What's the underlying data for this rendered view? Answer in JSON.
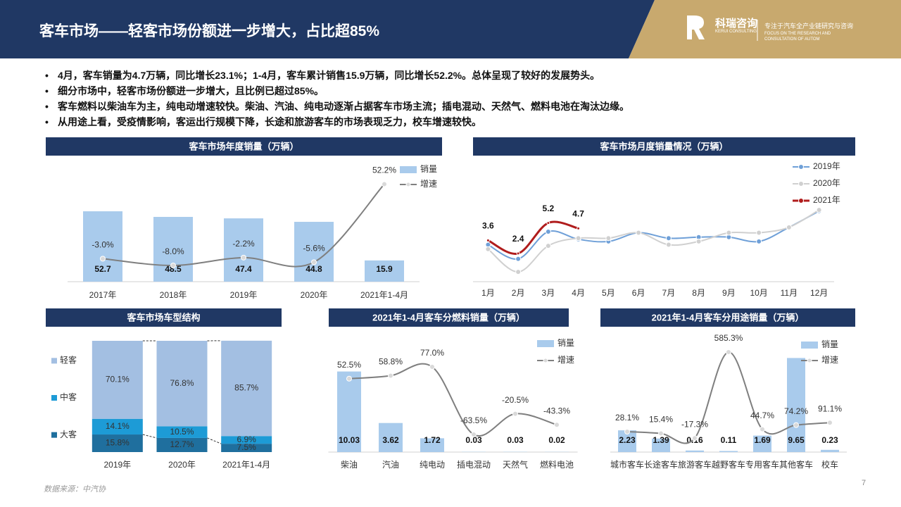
{
  "header": {
    "title": "客车市场——轻客市场份额进一步增大，占比超85%",
    "logo": "科瑞咨询",
    "logo_en": "KERUI CONSULTING",
    "tagline": "专注于汽车全产业链研究与咨询",
    "tagline_en_1": "FOCUS ON THE RESEARCH AND",
    "tagline_en_2": "CONSULTATION OF AUTOM"
  },
  "bullets": [
    "4月，客车销量为4.7万辆，同比增长23.1%；1-4月，客车累计销售15.9万辆，同比增长52.2%。总体呈现了较好的发展势头。",
    "细分市场中，轻客市场份额进一步增大，且比例已超过85%。",
    "客车燃料以柴油车为主，纯电动增速较快。柴油、汽油、纯电动逐渐占据客车市场主流；插电混动、天然气、燃料电池在淘汰边缘。",
    "从用途上看，受疫情影响，客运出行规模下降，长途和旅游客车的市场表现乏力，校车增速较快。"
  ],
  "chart_data": [
    {
      "type": "combo",
      "title": "客车市场年度销量（万辆）",
      "categories": [
        "2017年",
        "2018年",
        "2019年",
        "2020年",
        "2021年1-4月"
      ],
      "ylim": [
        0,
        87
      ],
      "y2lim": [
        -20,
        66
      ],
      "series": [
        {
          "name": "销量",
          "color": "#a9cbec",
          "values": [
            52.7,
            48.5,
            47.4,
            44.8,
            15.9
          ]
        },
        {
          "name": "增速",
          "color": "#7f7f7f",
          "axis": "y2",
          "values": [
            -3.0,
            -8.0,
            -2.2,
            -5.6,
            52.2
          ],
          "value_labels": [
            "-3.0%",
            "-8.0%",
            "-2.2%",
            "-5.6%",
            "52.2%"
          ]
        }
      ]
    },
    {
      "type": "line",
      "title": "客车市场月度销量情况（万辆）",
      "categories": [
        "1月",
        "2月",
        "3月",
        "4月",
        "5月",
        "6月",
        "7月",
        "8月",
        "9月",
        "10月",
        "11月",
        "12月"
      ],
      "ylim": [
        0,
        11
      ],
      "series": [
        {
          "name": "2019年",
          "color": "#6fa0d8",
          "values": [
            3.2,
            1.9,
            4.4,
            3.7,
            3.5,
            4.3,
            3.8,
            3.9,
            3.9,
            3.5,
            4.8,
            6.3
          ]
        },
        {
          "name": "2020年",
          "color": "#d0d0d0",
          "values": [
            2.8,
            0.7,
            3.1,
            3.8,
            3.8,
            4.3,
            3.2,
            3.5,
            4.3,
            4.3,
            4.8,
            6.4
          ]
        },
        {
          "name": "2021年",
          "color": "#b01c1c",
          "values": [
            3.6,
            2.4,
            5.2,
            4.7,
            null,
            null,
            null,
            null,
            null,
            null,
            null,
            null
          ]
        }
      ]
    },
    {
      "type": "stacked_bar",
      "title": "客车市场车型结构",
      "categories": [
        "2019年",
        "2020年",
        "2021年1-4月"
      ],
      "ylim": [
        0,
        100
      ],
      "series": [
        {
          "name": "大客",
          "color": "#1f6f9e",
          "values": [
            15.8,
            12.7,
            7.5
          ],
          "value_labels": [
            "15.8%",
            "12.7%",
            "7.5%"
          ]
        },
        {
          "name": "中客",
          "color": "#1d9bd6",
          "values": [
            14.1,
            10.5,
            6.9
          ],
          "value_labels": [
            "14.1%",
            "10.5%",
            "6.9%"
          ]
        },
        {
          "name": "轻客",
          "color": "#a3bfe2",
          "values": [
            70.1,
            76.8,
            85.7
          ],
          "value_labels": [
            "70.1%",
            "76.8%",
            "85.7%"
          ]
        }
      ]
    },
    {
      "type": "combo",
      "title": "2021年1-4月客车分燃料销量（万辆）",
      "categories": [
        "柴油",
        "汽油",
        "纯电动",
        "插电混动",
        "天然气",
        "燃料电池"
      ],
      "ylim": [
        0,
        14.2
      ],
      "y2lim": [
        -100,
        137
      ],
      "series": [
        {
          "name": "销量",
          "color": "#a9cbec",
          "values": [
            10.03,
            3.62,
            1.72,
            0.03,
            0.03,
            0.02
          ]
        },
        {
          "name": "增速",
          "color": "#7f7f7f",
          "axis": "y2",
          "values": [
            52.5,
            58.8,
            77.0,
            -63.5,
            -20.5,
            -43.3
          ],
          "value_labels": [
            "52.5%",
            "58.8%",
            "77.0%",
            "-63.5%",
            "-20.5%",
            "-43.3%"
          ]
        }
      ]
    },
    {
      "type": "combo",
      "title": "2021年1-4月客车分用途销量（万辆）",
      "categories": [
        "城市客车",
        "长途客车",
        "旅游客车",
        "越野客车",
        "专用客车",
        "其他客车",
        "校车"
      ],
      "ylim": [
        0,
        11.7
      ],
      "y2lim": [
        -115,
        684
      ],
      "series": [
        {
          "name": "销量",
          "color": "#a9cbec",
          "values": [
            2.23,
            1.39,
            0.16,
            0.11,
            1.69,
            9.65,
            0.23
          ]
        },
        {
          "name": "增速",
          "color": "#7f7f7f",
          "axis": "y2",
          "values": [
            28.1,
            15.4,
            -17.3,
            585.3,
            44.7,
            74.2,
            91.1
          ],
          "value_labels": [
            "28.1%",
            "15.4%",
            "-17.3%",
            "585.3%",
            "44.7%",
            "74.2%",
            "91.1%"
          ]
        }
      ]
    }
  ],
  "source": "数据来源：中汽协",
  "page_number": "7"
}
